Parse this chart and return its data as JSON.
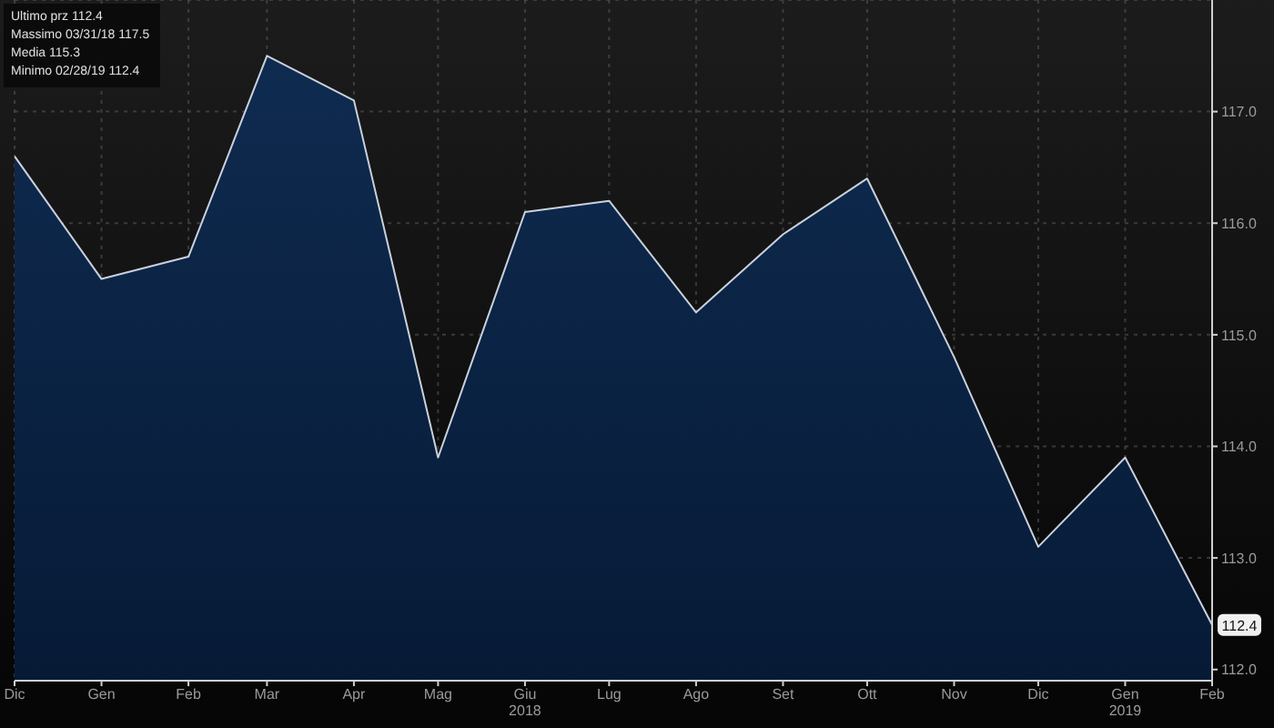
{
  "chart_data": {
    "type": "area",
    "x": [
      "2017-12",
      "2018-01",
      "2018-02",
      "2018-03",
      "2018-04",
      "2018-05",
      "2018-06",
      "2018-07",
      "2018-08",
      "2018-09",
      "2018-10",
      "2018-11",
      "2018-12",
      "2019-01",
      "2019-02"
    ],
    "series": [
      {
        "color": "#0f2b50",
        "values": [
          116.6,
          115.5,
          115.7,
          117.5,
          117.1,
          113.9,
          116.1,
          116.2,
          115.2,
          115.9,
          116.4,
          114.8,
          113.1,
          113.9,
          112.4
        ]
      }
    ],
    "xlim": [
      "2017-12",
      "2019-02"
    ],
    "xticks": [
      {
        "value": "2017-12",
        "label": "Dic"
      },
      {
        "value": "2018-01",
        "label": "Gen"
      },
      {
        "value": "2018-02",
        "label": "Feb"
      },
      {
        "value": "2018-03",
        "label": "Mar"
      },
      {
        "value": "2018-04",
        "label": "Apr"
      },
      {
        "value": "2018-05",
        "label": "Mag"
      },
      {
        "value": "2018-06",
        "label": "Giu\n2018"
      },
      {
        "value": "2018-07",
        "label": "Lug"
      },
      {
        "value": "2018-08",
        "label": "Ago"
      },
      {
        "value": "2018-09",
        "label": "Set"
      },
      {
        "value": "2018-10",
        "label": "Ott"
      },
      {
        "value": "2018-11",
        "label": "Nov"
      },
      {
        "value": "2018-12",
        "label": "Dic"
      },
      {
        "value": "2019-01",
        "label": "Gen\n2019"
      },
      {
        "value": "2019-02",
        "label": "Feb"
      }
    ],
    "ylim": [
      111.9,
      118
    ],
    "yticks": [
      {
        "value": 112,
        "label": "112.0"
      },
      {
        "value": 113,
        "label": "113.0"
      },
      {
        "value": 114,
        "label": "114.0"
      },
      {
        "value": 115,
        "label": "115.0"
      },
      {
        "value": 116,
        "label": "116.0"
      },
      {
        "value": 117,
        "label": "117.0"
      }
    ],
    "grid": true,
    "annotations": [
      {
        "text": "112.4",
        "x": "2019-02",
        "y": 112.4
      },
      "Ultimo prz 112.4",
      "Massimo 03/31/18 117.5",
      "Media 115.3",
      "Minimo 02/28/19 112.4"
    ]
  }
}
